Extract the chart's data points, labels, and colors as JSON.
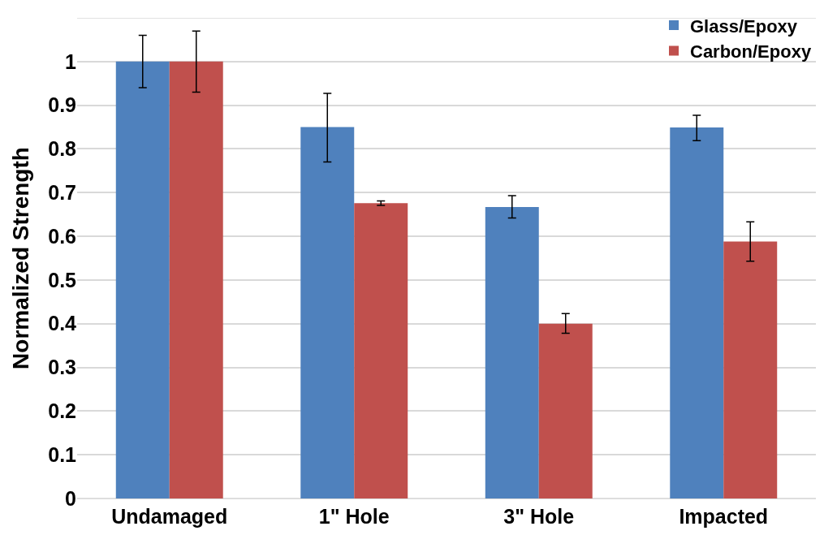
{
  "chart_data": {
    "type": "bar",
    "ylabel": "Normalized Strength",
    "categories": [
      "Undamaged",
      "1\" Hole",
      "3\" Hole",
      "Impacted"
    ],
    "series": [
      {
        "name": "Glass/Epoxy",
        "color": "#4f81bd",
        "values": [
          1.0,
          0.85,
          0.667,
          0.849
        ],
        "errors": [
          [
            0.94,
            1.06
          ],
          [
            0.77,
            0.927
          ],
          [
            0.642,
            0.693
          ],
          [
            0.819,
            0.877
          ]
        ]
      },
      {
        "name": "Carbon/Epoxy",
        "color": "#c0504d",
        "values": [
          1.0,
          0.676,
          0.4,
          0.588
        ],
        "errors": [
          [
            0.93,
            1.07
          ],
          [
            0.671,
            0.681
          ],
          [
            0.378,
            0.423
          ],
          [
            0.543,
            0.633
          ]
        ]
      }
    ],
    "ylim": [
      0,
      1.1
    ],
    "yticks": [
      0,
      {
        "value": 0.1,
        "label": "0.1"
      },
      {
        "value": 0.2,
        "label": "0.2"
      },
      {
        "value": 0.3,
        "label": "0.3"
      },
      {
        "value": 0.4,
        "label": "0.4"
      },
      {
        "value": 0.5,
        "label": "0.5"
      },
      {
        "value": 0.6,
        "label": "0.6"
      },
      {
        "value": 0.7,
        "label": "0.7"
      },
      {
        "value": 0.8,
        "label": "0.8"
      },
      {
        "value": 0.9,
        "label": "0.9"
      },
      1,
      {
        "value": 1.1,
        "label": null
      }
    ],
    "grid": "y",
    "legend": "top right"
  }
}
